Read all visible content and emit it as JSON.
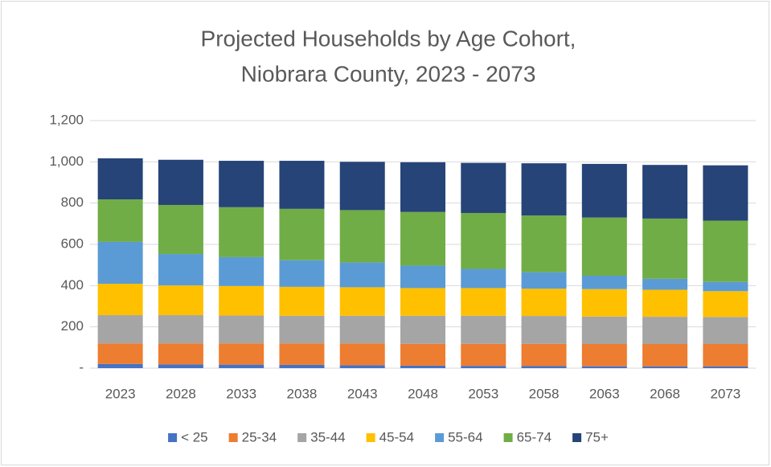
{
  "chart_data": {
    "type": "stacked_bar",
    "title": [
      "Projected Households by Age Cohort,",
      "Niobrara County, 2023 - 2073"
    ],
    "categories": [
      "2023",
      "2028",
      "2033",
      "2038",
      "2043",
      "2048",
      "2053",
      "2058",
      "2063",
      "2068",
      "2073"
    ],
    "series": [
      {
        "name": "< 25",
        "color": "#4472c4",
        "values": [
          20,
          18,
          17,
          16,
          14,
          12,
          11,
          10,
          9,
          8,
          8
        ]
      },
      {
        "name": "25-34",
        "color": "#ed7d31",
        "values": [
          100,
          102,
          103,
          104,
          106,
          106,
          107,
          108,
          108,
          109,
          109
        ]
      },
      {
        "name": "35-44",
        "color": "#a5a5a5",
        "values": [
          137,
          137,
          135,
          134,
          134,
          136,
          136,
          135,
          133,
          132,
          131
        ]
      },
      {
        "name": "45-54",
        "color": "#ffc000",
        "values": [
          152,
          144,
          143,
          140,
          138,
          134,
          134,
          132,
          133,
          131,
          125
        ]
      },
      {
        "name": "55-64",
        "color": "#5b9bd5",
        "values": [
          203,
          152,
          140,
          129,
          120,
          109,
          93,
          80,
          65,
          53,
          45
        ]
      },
      {
        "name": "65-74",
        "color": "#70ad47",
        "values": [
          206,
          238,
          242,
          249,
          254,
          260,
          271,
          275,
          282,
          292,
          297
        ]
      },
      {
        "name": "75+",
        "color": "#264478",
        "values": [
          199,
          219,
          225,
          233,
          234,
          241,
          243,
          253,
          260,
          260,
          268
        ]
      }
    ],
    "ylim": [
      0,
      1200
    ],
    "yticks": [
      {
        "value": 0,
        "label": "-"
      },
      200,
      400,
      600,
      800,
      {
        "value": 1000,
        "label": "1,000"
      },
      {
        "value": 1200,
        "label": "1,200"
      }
    ],
    "grid": true,
    "legend": "bottom"
  }
}
